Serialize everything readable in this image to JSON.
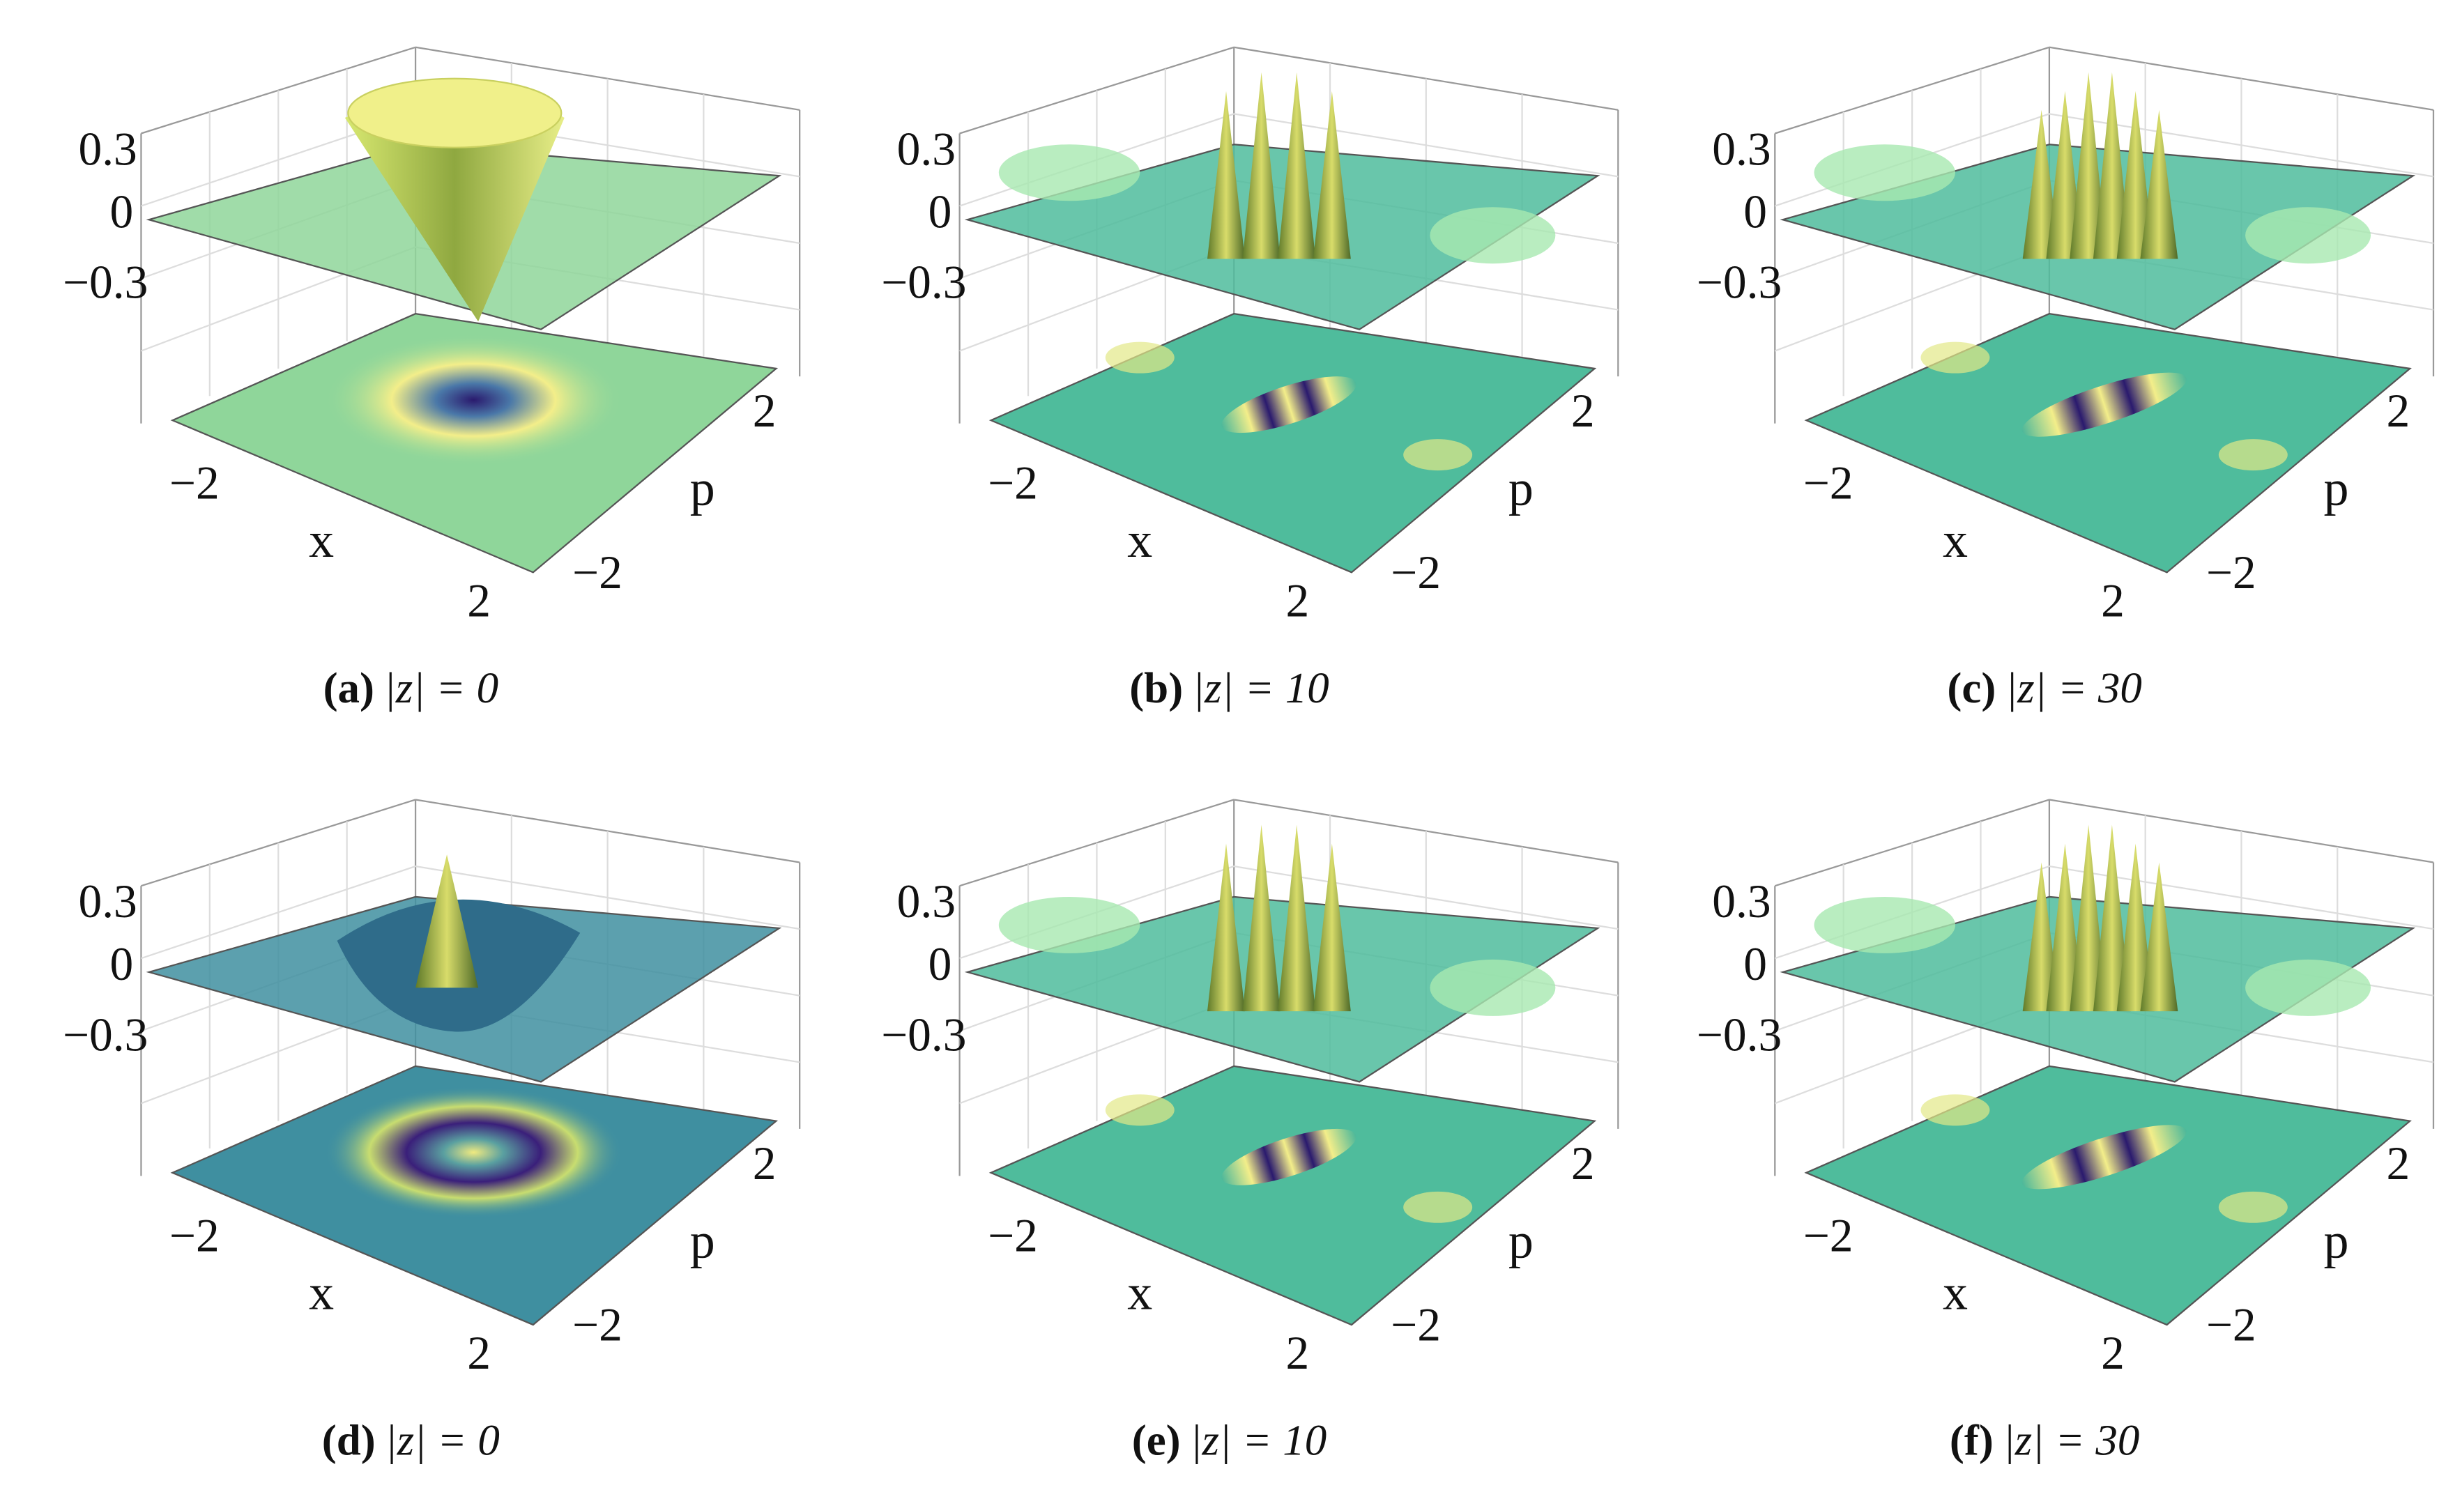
{
  "figure": {
    "panels": [
      {
        "label": "(a)",
        "caption": "|z| = 0",
        "zticks": [
          "0.3",
          "0",
          "−0.3"
        ],
        "xticks": [
          "−2",
          "2"
        ],
        "pticks": [
          "2",
          "−2"
        ],
        "xlabel": "x",
        "plabel": "p"
      },
      {
        "label": "(b)",
        "caption": "|z| = 10",
        "zticks": [
          "0.3",
          "0",
          "−0.3"
        ],
        "xticks": [
          "−2",
          "2"
        ],
        "pticks": [
          "2",
          "−2"
        ],
        "xlabel": "x",
        "plabel": "p"
      },
      {
        "label": "(c)",
        "caption": "|z| = 30",
        "zticks": [
          "0.3",
          "0",
          "−0.3"
        ],
        "xticks": [
          "−2",
          "2"
        ],
        "pticks": [
          "2",
          "−2"
        ],
        "xlabel": "x",
        "plabel": "p"
      },
      {
        "label": "(d)",
        "caption": "|z| = 0",
        "zticks": [
          "0.3",
          "0",
          "−0.3"
        ],
        "xticks": [
          "−2",
          "2"
        ],
        "pticks": [
          "2",
          "−2"
        ],
        "xlabel": "x",
        "plabel": "p"
      },
      {
        "label": "(e)",
        "caption": "|z| = 10",
        "zticks": [
          "0.3",
          "0",
          "−0.3"
        ],
        "xticks": [
          "−2",
          "2"
        ],
        "pticks": [
          "2",
          "−2"
        ],
        "xlabel": "x",
        "plabel": "p"
      },
      {
        "label": "(f)",
        "caption": "|z| = 30",
        "zticks": [
          "0.3",
          "0",
          "−0.3"
        ],
        "xticks": [
          "−2",
          "2"
        ],
        "pticks": [
          "2",
          "−2"
        ],
        "xlabel": "x",
        "plabel": "p"
      }
    ]
  }
}
